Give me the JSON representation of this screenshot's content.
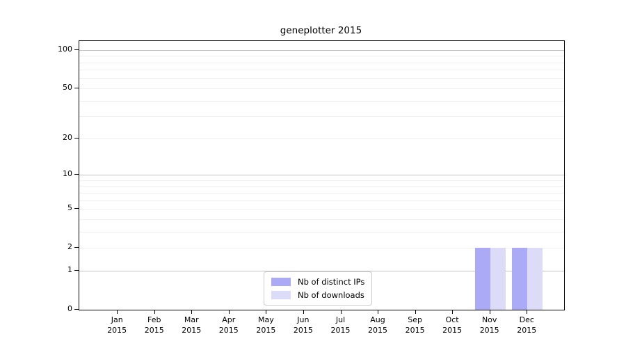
{
  "figure": {
    "title": "geneplotter 2015"
  },
  "chart_data": {
    "type": "bar",
    "title": "geneplotter 2015",
    "categories": [
      "Jan",
      "Feb",
      "Mar",
      "Apr",
      "May",
      "Jun",
      "Jul",
      "Aug",
      "Sep",
      "Oct",
      "Nov",
      "Dec"
    ],
    "category_year": "2015",
    "series": [
      {
        "name": "Nb of distinct IPs",
        "color": "#aaaaf6",
        "values": [
          0,
          0,
          0,
          0,
          0,
          0,
          0,
          0,
          0,
          0,
          2,
          2
        ]
      },
      {
        "name": "Nb of downloads",
        "color": "#dcdcf8",
        "values": [
          0,
          0,
          0,
          0,
          0,
          0,
          0,
          0,
          0,
          0,
          2,
          2
        ]
      }
    ],
    "xlabel": "",
    "ylabel": "",
    "y_ticks": [
      0,
      1,
      2,
      5,
      10,
      20,
      50,
      100
    ],
    "y_scale": "log1p",
    "ylim": [
      0,
      117
    ],
    "grid": "horizontal",
    "grid_major_at": [
      1,
      10,
      100
    ],
    "legend_position": "bottom-center"
  }
}
